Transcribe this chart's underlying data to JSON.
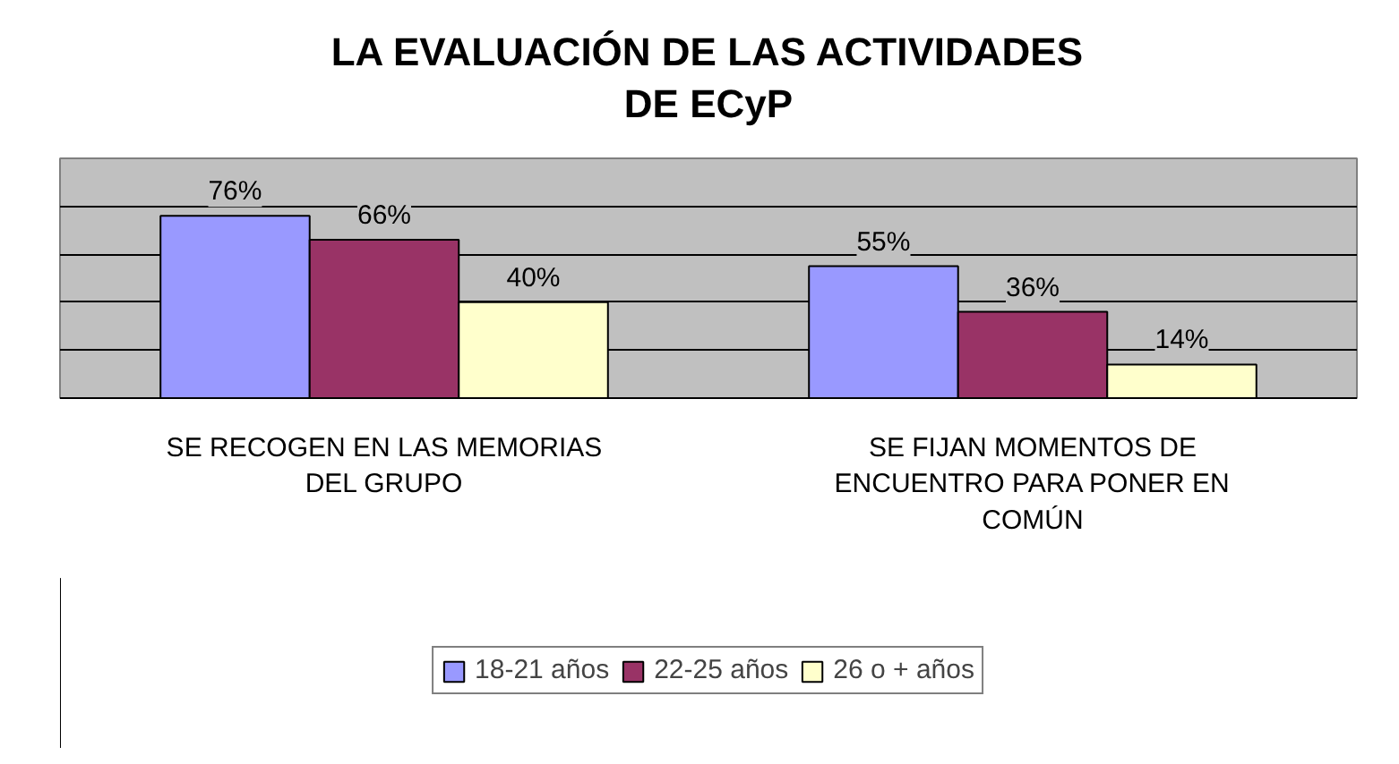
{
  "chart_data": {
    "type": "bar",
    "title": "LA EVALUACIÓN DE LAS ACTIVIDADES DE ECyP",
    "categories": [
      "SE RECOGEN EN LAS MEMORIAS DEL GRUPO",
      "SE FIJAN MOMENTOS DE ENCUENTRO PARA PONER EN COMÚN"
    ],
    "series": [
      {
        "name": "18-21 años",
        "color": "#9999ff",
        "values": [
          76,
          55
        ],
        "value_labels": [
          "76%",
          "55%"
        ]
      },
      {
        "name": "22-25 años",
        "color": "#993366",
        "values": [
          66,
          36
        ],
        "value_labels": [
          "66%",
          "36%"
        ]
      },
      {
        "name": "26 o + años",
        "color": "#ffffcc",
        "values": [
          40,
          14
        ],
        "value_labels": [
          "40%",
          "14%"
        ]
      }
    ],
    "ylim": [
      0,
      100
    ],
    "yticks": [
      {
        "value": 0,
        "label": null
      },
      {
        "value": 20,
        "label": null
      },
      {
        "value": 40,
        "label": null
      },
      {
        "value": 60,
        "label": null
      },
      {
        "value": 80,
        "label": null
      },
      {
        "value": 100,
        "label": null
      }
    ],
    "tick_labels": "x",
    "grid": "y",
    "legend": "bottom"
  }
}
